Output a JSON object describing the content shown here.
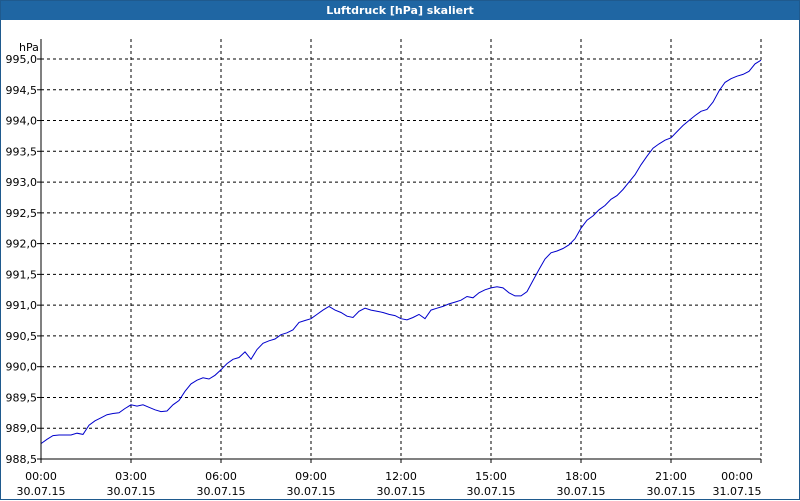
{
  "window": {
    "title": "Luftdruck [hPa] skaliert"
  },
  "chart_data": {
    "type": "line",
    "title": "Luftdruck [hPa] skaliert",
    "ylabel": "hPa",
    "xlabel": "",
    "ylim": [
      988.5,
      995.0
    ],
    "xlim": [
      0,
      24
    ],
    "grid": true,
    "line_color": "#0000cc",
    "y_ticks": [
      "995,0",
      "994,5",
      "994,0",
      "993,5",
      "993,0",
      "992,5",
      "992,0",
      "991,5",
      "991,0",
      "990,5",
      "990,0",
      "989,5",
      "989,0",
      "988,5"
    ],
    "y_tick_values": [
      995.0,
      994.5,
      994.0,
      993.5,
      993.0,
      992.5,
      992.0,
      991.5,
      991.0,
      990.5,
      990.0,
      989.5,
      989.0,
      988.5
    ],
    "x_ticks": [
      {
        "time": "00:00",
        "date": "30.07.15"
      },
      {
        "time": "03:00",
        "date": "30.07.15"
      },
      {
        "time": "06:00",
        "date": "30.07.15"
      },
      {
        "time": "09:00",
        "date": "30.07.15"
      },
      {
        "time": "12:00",
        "date": "30.07.15"
      },
      {
        "time": "15:00",
        "date": "30.07.15"
      },
      {
        "time": "18:00",
        "date": "30.07.15"
      },
      {
        "time": "21:00",
        "date": "30.07.15"
      },
      {
        "time": "00:00",
        "date": "31.07.15"
      }
    ],
    "x_tick_hours": [
      0,
      3,
      6,
      9,
      12,
      15,
      18,
      21,
      24
    ],
    "series": [
      {
        "x": [
          0,
          0.2,
          0.4,
          0.6,
          0.8,
          1.0,
          1.2,
          1.4,
          1.6,
          1.8,
          2.0,
          2.2,
          2.4,
          2.6,
          2.8,
          3.0,
          3.2,
          3.4,
          3.6,
          3.8,
          4.0,
          4.2,
          4.4,
          4.6,
          4.8,
          5.0,
          5.2,
          5.4,
          5.6,
          5.8,
          6.0,
          6.2,
          6.4,
          6.6,
          6.8,
          7.0,
          7.2,
          7.4,
          7.6,
          7.8,
          8.0,
          8.2,
          8.4,
          8.6,
          8.8,
          9.0,
          9.2,
          9.4,
          9.6,
          9.8,
          10.0,
          10.2,
          10.4,
          10.6,
          10.8,
          11.0,
          11.2,
          11.4,
          11.6,
          11.8,
          12.0,
          12.2,
          12.4,
          12.6,
          12.8,
          13.0,
          13.2,
          13.4,
          13.6,
          13.8,
          14.0,
          14.2,
          14.4,
          14.6,
          14.8,
          15.0,
          15.2,
          15.4,
          15.6,
          15.8,
          16.0,
          16.2,
          16.4,
          16.6,
          16.8,
          17.0,
          17.2,
          17.4,
          17.6,
          17.8,
          18.0,
          18.2,
          18.4,
          18.6,
          18.8,
          19.0,
          19.2,
          19.4,
          19.6,
          19.8,
          20.0,
          20.2,
          20.4,
          20.6,
          20.8,
          21.0,
          21.2,
          21.4,
          21.6,
          21.8,
          22.0,
          22.2,
          22.4,
          22.6,
          22.8,
          23.0,
          23.2,
          23.4,
          23.6,
          23.8,
          24.0
        ],
        "y": [
          988.75,
          988.82,
          988.88,
          988.89,
          988.89,
          988.89,
          988.92,
          988.9,
          989.05,
          989.12,
          989.17,
          989.22,
          989.24,
          989.25,
          989.32,
          989.38,
          989.36,
          989.38,
          989.34,
          989.3,
          989.27,
          989.28,
          989.38,
          989.45,
          989.6,
          989.72,
          989.78,
          989.82,
          989.8,
          989.86,
          989.95,
          990.05,
          990.12,
          990.15,
          990.24,
          990.12,
          990.28,
          990.38,
          990.42,
          990.45,
          990.52,
          990.55,
          990.6,
          990.72,
          990.75,
          990.78,
          990.85,
          990.92,
          990.98,
          990.92,
          990.88,
          990.82,
          990.8,
          990.9,
          990.95,
          990.92,
          990.9,
          990.88,
          990.85,
          990.83,
          990.78,
          990.76,
          990.8,
          990.85,
          990.78,
          990.92,
          990.95,
          990.98,
          991.02,
          991.05,
          991.08,
          991.14,
          991.12,
          991.2,
          991.25,
          991.28,
          991.3,
          991.28,
          991.2,
          991.15,
          991.15,
          991.22,
          991.4,
          991.58,
          991.75,
          991.85,
          991.88,
          991.92,
          991.98,
          992.08,
          992.25,
          992.38,
          992.45,
          992.55,
          992.62,
          992.72,
          992.78,
          992.88,
          993.0,
          993.12,
          993.28,
          993.42,
          993.55,
          993.62,
          993.68,
          993.72,
          993.82,
          993.92,
          994.0,
          994.08,
          994.15,
          994.18,
          994.3,
          994.48,
          994.62,
          994.68,
          994.72,
          994.75,
          994.8,
          994.92,
          994.98
        ]
      }
    ]
  }
}
